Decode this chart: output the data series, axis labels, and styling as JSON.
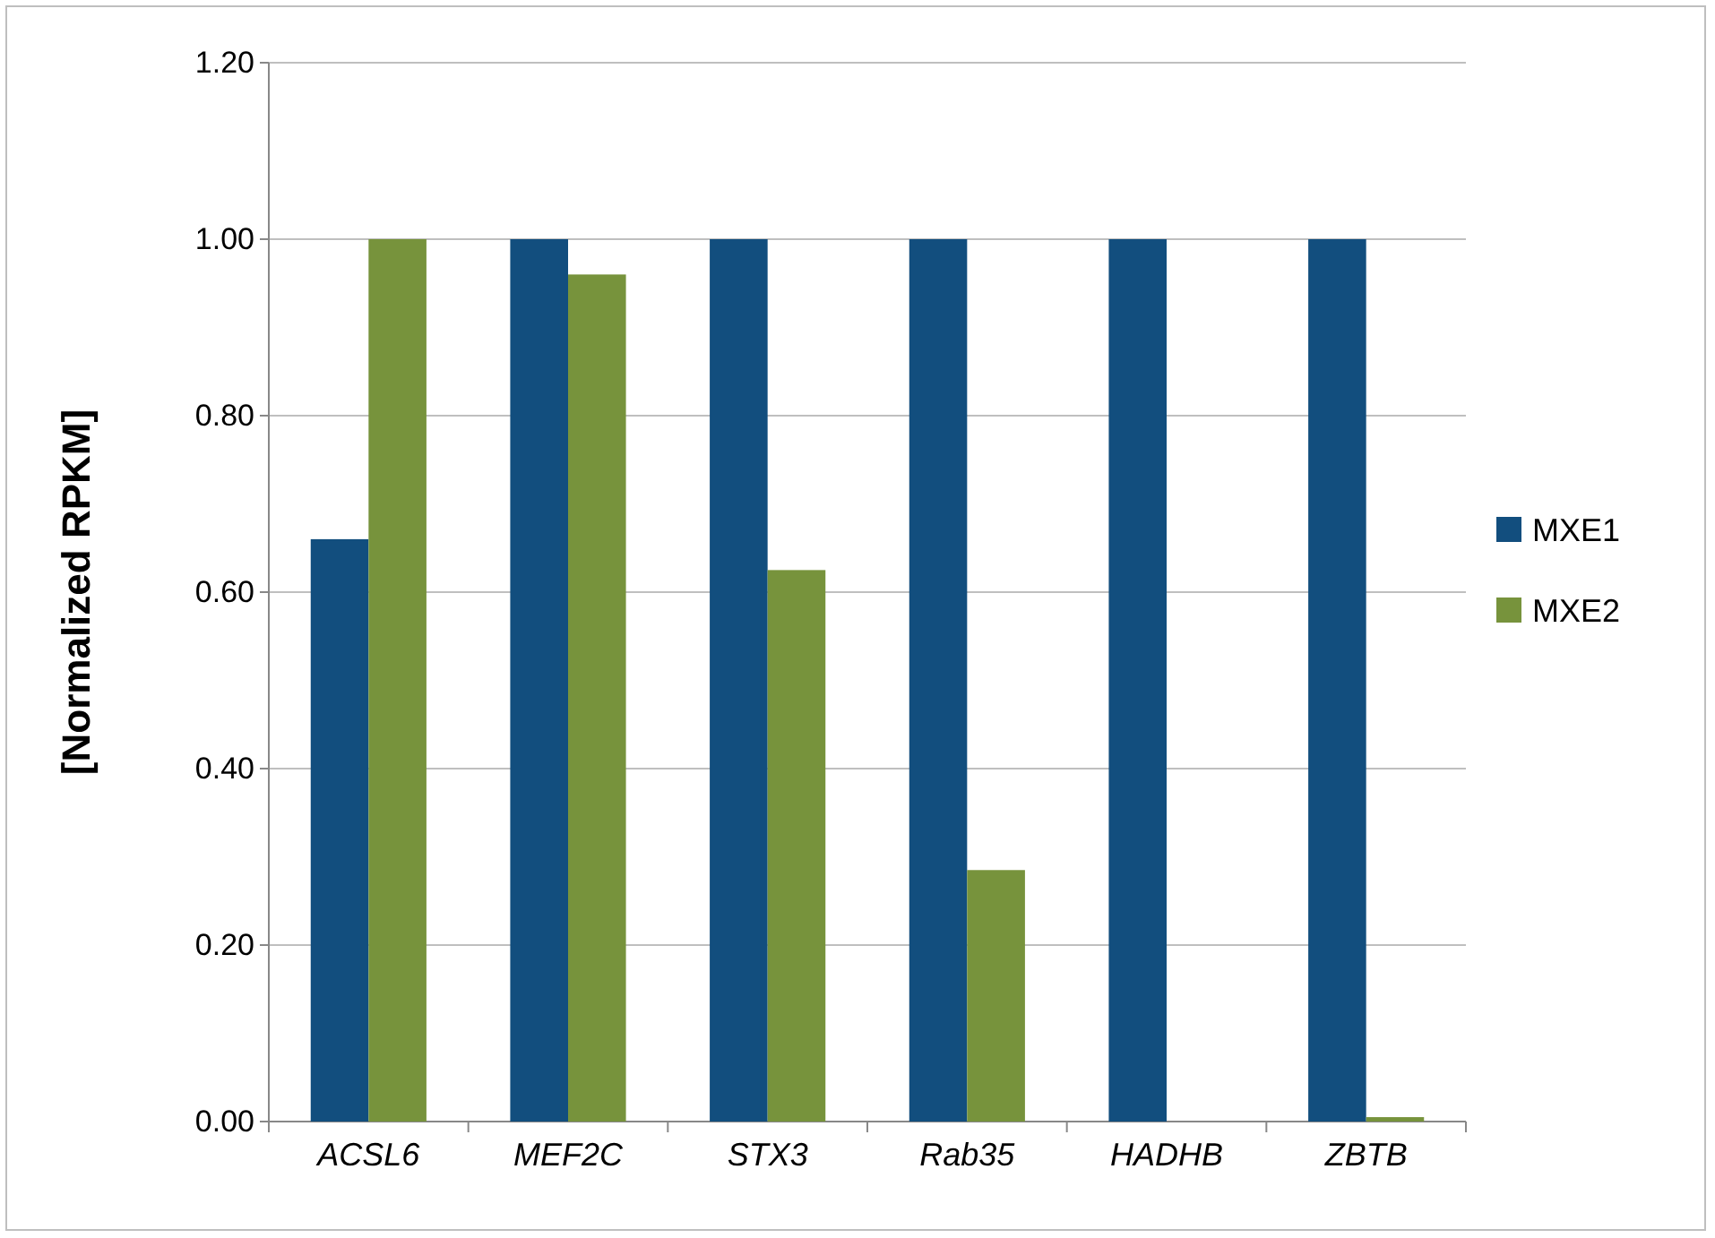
{
  "chart_data": {
    "type": "bar",
    "ylabel": "[Normalized RPKM]",
    "categories": [
      "ACSL6",
      "MEF2C",
      "STX3",
      "Rab35",
      "HADHB",
      "ZBTB"
    ],
    "series": [
      {
        "name": "MXE1",
        "color": "#124e7e",
        "values": [
          0.66,
          1.0,
          1.0,
          1.0,
          1.0,
          1.0
        ]
      },
      {
        "name": "MXE2",
        "color": "#77933c",
        "values": [
          1.0,
          0.96,
          0.625,
          0.285,
          0,
          0.005
        ]
      }
    ],
    "ylim": [
      0,
      1.2
    ],
    "yticks": [
      {
        "value": 0,
        "label": "0.00"
      },
      {
        "value": 0.2,
        "label": "0.20"
      },
      {
        "value": 0.4,
        "label": "0.40"
      },
      {
        "value": 0.6,
        "label": "0.60"
      },
      {
        "value": 0.8,
        "label": "0.80"
      },
      {
        "value": 1.0,
        "label": "1.00"
      },
      {
        "value": 1.2,
        "label": "1.20"
      }
    ],
    "grid": "y",
    "legend": "right"
  }
}
